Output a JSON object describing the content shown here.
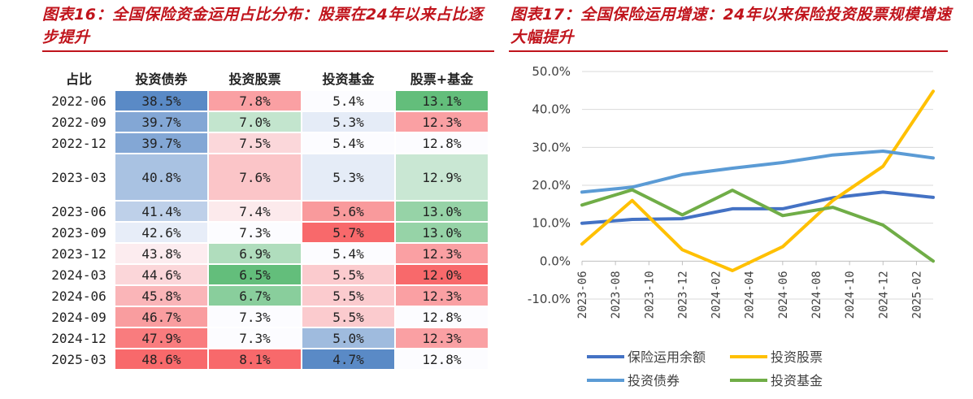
{
  "fig16": {
    "title": "图表16：全国保险资金运用占比分布：股票在24年以来占比逐步提升"
  },
  "fig17": {
    "title": "图表17：全国保险运用增速：24年以来保险投资股票规模增速大幅提升"
  },
  "table": {
    "headers": [
      "占比",
      "投资债券",
      "投资股票",
      "投资基金",
      "股票+基金"
    ],
    "rows": [
      {
        "date": "2022-06",
        "bond": "38.5%",
        "stock": "7.8%",
        "fund": "5.4%",
        "sf": "13.1%"
      },
      {
        "date": "2022-09",
        "bond": "39.7%",
        "stock": "7.0%",
        "fund": "5.3%",
        "sf": "12.3%"
      },
      {
        "date": "2022-12",
        "bond": "39.7%",
        "stock": "7.5%",
        "fund": "5.4%",
        "sf": "12.8%"
      },
      {
        "date": "2023-03",
        "bond": "40.8%",
        "stock": "7.6%",
        "fund": "5.3%",
        "sf": "12.9%"
      },
      {
        "date": "2023-06",
        "bond": "41.4%",
        "stock": "7.4%",
        "fund": "5.6%",
        "sf": "13.0%"
      },
      {
        "date": "2023-09",
        "bond": "42.6%",
        "stock": "7.3%",
        "fund": "5.7%",
        "sf": "13.0%"
      },
      {
        "date": "2023-12",
        "bond": "43.8%",
        "stock": "6.9%",
        "fund": "5.4%",
        "sf": "12.3%"
      },
      {
        "date": "2024-03",
        "bond": "44.6%",
        "stock": "6.5%",
        "fund": "5.5%",
        "sf": "12.0%"
      },
      {
        "date": "2024-06",
        "bond": "45.8%",
        "stock": "6.7%",
        "fund": "5.5%",
        "sf": "12.3%"
      },
      {
        "date": "2024-09",
        "bond": "46.7%",
        "stock": "7.3%",
        "fund": "5.5%",
        "sf": "12.8%"
      },
      {
        "date": "2024-12",
        "bond": "47.9%",
        "stock": "7.3%",
        "fund": "5.0%",
        "sf": "12.3%"
      },
      {
        "date": "2025-03",
        "bond": "48.6%",
        "stock": "8.1%",
        "fund": "4.7%",
        "sf": "12.8%"
      }
    ]
  },
  "chart_data": [
    {
      "type": "table",
      "columns": [
        "占比",
        "投资债券",
        "投资股票",
        "投资基金",
        "股票+基金"
      ],
      "rows": [
        [
          "2022-06",
          38.5,
          7.8,
          5.4,
          13.1
        ],
        [
          "2022-09",
          39.7,
          7.0,
          5.3,
          12.3
        ],
        [
          "2022-12",
          39.7,
          7.5,
          5.4,
          12.8
        ],
        [
          "2023-03",
          40.8,
          7.6,
          5.3,
          12.9
        ],
        [
          "2023-06",
          41.4,
          7.4,
          5.6,
          13.0
        ],
        [
          "2023-09",
          42.6,
          7.3,
          5.7,
          13.0
        ],
        [
          "2023-12",
          43.8,
          6.9,
          5.4,
          12.3
        ],
        [
          "2024-03",
          44.6,
          6.5,
          5.5,
          12.0
        ],
        [
          "2024-06",
          45.8,
          6.7,
          5.5,
          12.3
        ],
        [
          "2024-09",
          46.7,
          7.3,
          5.5,
          12.8
        ],
        [
          "2024-12",
          47.9,
          7.3,
          5.0,
          12.3
        ],
        [
          "2025-03",
          48.6,
          8.1,
          4.7,
          12.8
        ]
      ],
      "heatmap_colors": {
        "high": "#f8696b",
        "mid": "#fcfcff",
        "low": "#5a8ac6",
        "green": "#63be7b"
      }
    },
    {
      "type": "line",
      "title": "",
      "xlabel": "",
      "ylabel": "",
      "categories": [
        "2023-06",
        "2023-08",
        "2023-10",
        "2023-12",
        "2024-02",
        "2024-04",
        "2024-06",
        "2024-08",
        "2024-10",
        "2024-12",
        "2025-02"
      ],
      "x": [
        "2023-06",
        "2023-09",
        "2023-12",
        "2024-03",
        "2024-06",
        "2024-09",
        "2024-12",
        "2025-03"
      ],
      "ylim": [
        -10,
        50
      ],
      "yticks": [
        "50.0%",
        "40.0%",
        "30.0%",
        "20.0%",
        "10.0%",
        "0.0%",
        "-10.0%"
      ],
      "grid": true,
      "legend": "bottom",
      "series": [
        {
          "name": "保险运用余额",
          "color": "#4472c4",
          "values": [
            10.0,
            11.0,
            11.2,
            13.8,
            13.8,
            16.7,
            18.2,
            16.8
          ]
        },
        {
          "name": "投资股票",
          "color": "#ffc000",
          "values": [
            4.5,
            16.0,
            3.0,
            -2.5,
            3.8,
            16.0,
            25.0,
            44.8
          ]
        },
        {
          "name": "投资债券",
          "color": "#5b9bd5",
          "values": [
            18.2,
            19.5,
            22.8,
            24.5,
            26.0,
            28.0,
            29.0,
            27.2
          ]
        },
        {
          "name": "投资基金",
          "color": "#70ad47",
          "values": [
            14.8,
            18.8,
            12.2,
            18.7,
            12.0,
            14.2,
            9.5,
            0.0
          ]
        }
      ]
    }
  ]
}
